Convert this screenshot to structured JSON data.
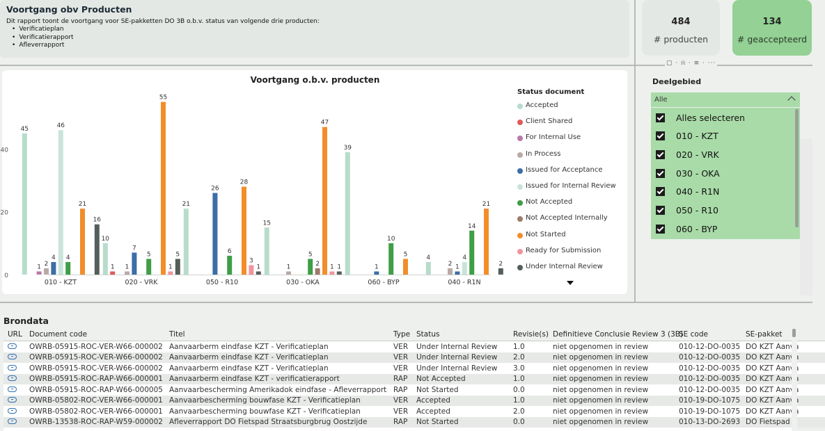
{
  "header": {
    "title": "Voortgang obv Producten",
    "description": "Dit rapport toont de voortgang voor SE-pakketten DO 3B o.b.v. status van volgende drie producten:",
    "items": [
      "Verificatieplan",
      "Verificatierapport",
      "Afleverrapport"
    ]
  },
  "kpis": [
    {
      "value": "484",
      "label": "# producten"
    },
    {
      "value": "134",
      "label": "# geaccepteerd"
    }
  ],
  "toolbar": {
    "icons": "▢ · ⍾ · ≡ · ···"
  },
  "chart_data": {
    "type": "bar",
    "title": "Voortgang o.b.v. producten",
    "categories": [
      "010 - KZT",
      "020 - VRK",
      "050 - R10",
      "030 - OKA",
      "060 - BYP",
      "040 - R1N"
    ],
    "ylim": [
      0,
      60
    ],
    "yticks": [
      0,
      20,
      40
    ],
    "legend_title": "Status document",
    "legend_position": "right",
    "series": [
      {
        "name": "Accepted",
        "color": "#b8dccb",
        "values": [
          45,
          10,
          21,
          15,
          39,
          4
        ]
      },
      {
        "name": "Client Shared",
        "color": "#e05a5a",
        "values": [
          null,
          1,
          null,
          null,
          null,
          null
        ]
      },
      {
        "name": "For Internal Use",
        "color": "#b77aa8",
        "values": [
          1,
          null,
          null,
          null,
          null,
          null
        ]
      },
      {
        "name": "In Process",
        "color": "#b9aaa5",
        "values": [
          2,
          1,
          null,
          1,
          null,
          2
        ]
      },
      {
        "name": "Issued for Acceptance",
        "color": "#3c6ea8",
        "values": [
          4,
          7,
          26,
          null,
          1,
          1
        ]
      },
      {
        "name": "Issued for Internal Review",
        "color": "#c9e4d9",
        "values": [
          46,
          null,
          null,
          null,
          null,
          4
        ]
      },
      {
        "name": "Not Accepted",
        "color": "#3f9e46",
        "values": [
          4,
          5,
          6,
          5,
          10,
          14
        ]
      },
      {
        "name": "Not Accepted Internally",
        "color": "#9e7a6a",
        "values": [
          null,
          null,
          null,
          2,
          null,
          null
        ]
      },
      {
        "name": "Not Started",
        "color": "#f28d2a",
        "values": [
          21,
          55,
          28,
          47,
          5,
          21
        ]
      },
      {
        "name": "Ready for Submission",
        "color": "#f2939d",
        "values": [
          null,
          1,
          3,
          1,
          null,
          null
        ]
      },
      {
        "name": "Under Internal Review",
        "color": "#545e5a",
        "values": [
          16,
          5,
          1,
          1,
          null,
          2
        ]
      }
    ]
  },
  "slicer": {
    "title": "Deelgebied",
    "selected": "Alle",
    "options": [
      "Alles selecteren",
      "010 - KZT",
      "020 - VRK",
      "030 - OKA",
      "040 - R1N",
      "050 - R10",
      "060 - BYP"
    ]
  },
  "table": {
    "title": "Brondata",
    "columns": [
      "URL",
      "Document code",
      "Titel",
      "Type",
      "Status",
      "Revisie(s)",
      "Definitieve Conclusie Review 3 (3B)",
      "SE code",
      "SE-pakket"
    ],
    "rows": [
      [
        "",
        "OWRB-05915-ROC-VER-W66-000002",
        "Aanvaarberm eindfase KZT - Verificatieplan",
        "VER",
        "Under Internal Review",
        "1.0",
        "niet opgenomen in review",
        "010-12-DO-0035",
        "DO KZT Aanva"
      ],
      [
        "",
        "OWRB-05915-ROC-VER-W66-000002",
        "Aanvaarberm eindfase KZT - Verificatieplan",
        "VER",
        "Under Internal Review",
        "2.0",
        "niet opgenomen in review",
        "010-12-DO-0035",
        "DO KZT Aanva"
      ],
      [
        "",
        "OWRB-05915-ROC-VER-W66-000002",
        "Aanvaarberm eindfase KZT - Verificatieplan",
        "VER",
        "Under Internal Review",
        "3.0",
        "niet opgenomen in review",
        "010-12-DO-0035",
        "DO KZT Aanva"
      ],
      [
        "",
        "OWRB-05915-ROC-RAP-W66-000001",
        "Aanvaarberm eindfase KZT - verificatierapport",
        "RAP",
        "Not Accepted",
        "1.0",
        "niet opgenomen in review",
        "010-12-DO-0035",
        "DO KZT Aanva"
      ],
      [
        "",
        "OWRB-05915-ROC-RAP-W66-000005",
        "Aanvaarbescherming Amerikadok eindfase - Afleverrapport",
        "RAP",
        "Not Started",
        "0.0",
        "niet opgenomen in review",
        "010-12-DO-0035",
        "DO KZT Aanva"
      ],
      [
        "",
        "OWRB-05802-ROC-VER-W66-000001",
        "Aanvaarbescherming bouwfase KZT - Verificatieplan",
        "VER",
        "Accepted",
        "1.0",
        "niet opgenomen in review",
        "010-19-DO-1075",
        "DO KZT Aanva"
      ],
      [
        "",
        "OWRB-05802-ROC-VER-W66-000001",
        "Aanvaarbescherming bouwfase KZT - Verificatieplan",
        "VER",
        "Accepted",
        "2.0",
        "niet opgenomen in review",
        "010-19-DO-1075",
        "DO KZT Aanva"
      ],
      [
        "",
        "OWRB-13538-ROC-RAP-W59-000002",
        "Afleverrapport DO Fietspad Straatsburgbrug Oostzijde",
        "RAP",
        "Not Started",
        "0.0",
        "niet opgenomen in review",
        "010-13-DO-2693",
        "DO Fietspad S"
      ]
    ]
  }
}
